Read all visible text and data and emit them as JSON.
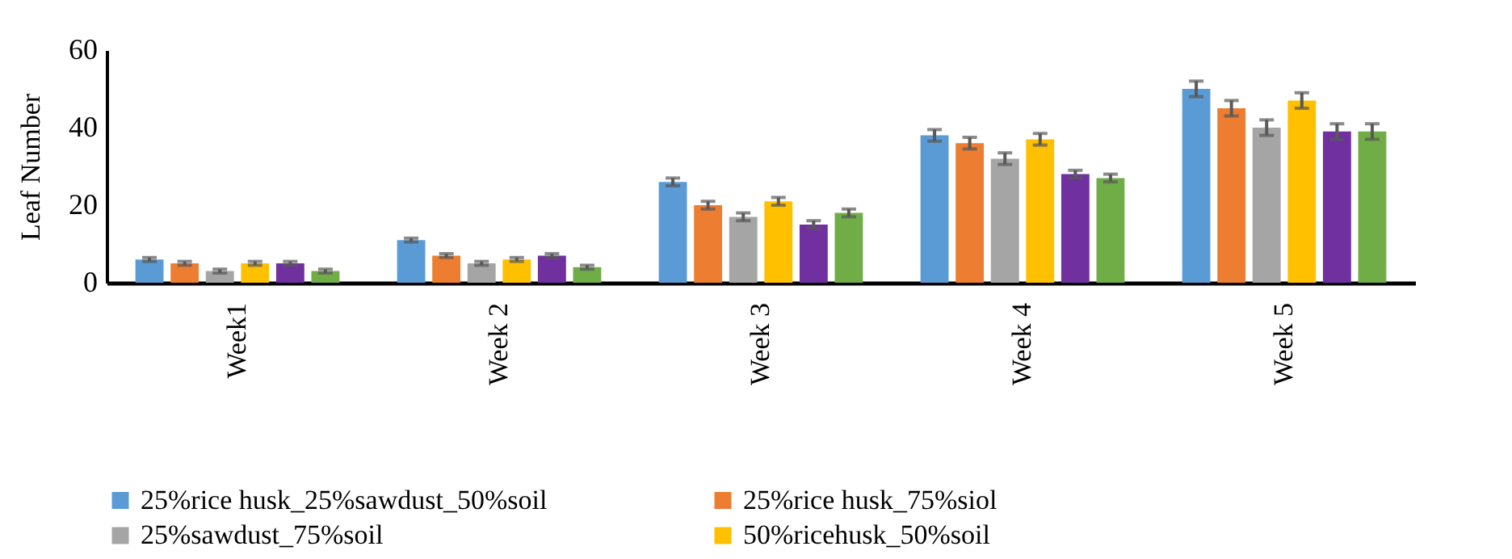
{
  "chart_data": {
    "type": "bar",
    "ylabel": "Leaf Number",
    "categories": [
      "Week1",
      "Week 2",
      "Week 3",
      "Week 4",
      "Week 5"
    ],
    "series": [
      {
        "name": "25%rice husk_25%sawdust_50%soil",
        "color": "#5b9bd5",
        "values": [
          6,
          11,
          26,
          38,
          50
        ],
        "errors": [
          0.5,
          0.5,
          1,
          1.5,
          2
        ]
      },
      {
        "name": "25%rice husk_75%siol",
        "color": "#ed7d31",
        "values": [
          5,
          7,
          20,
          36,
          45
        ],
        "errors": [
          0.5,
          0.5,
          1,
          1.5,
          2
        ]
      },
      {
        "name": "25%sawdust_75%soil",
        "color": "#a5a5a5",
        "values": [
          3,
          5,
          17,
          32,
          40
        ],
        "errors": [
          0.5,
          0.5,
          1,
          1.5,
          2
        ]
      },
      {
        "name": "50%ricehusk_50%soil",
        "color": "#ffc000",
        "values": [
          5,
          6,
          21,
          37,
          47
        ],
        "errors": [
          0.5,
          0.5,
          1,
          1.5,
          2
        ]
      },
      {
        "color": "#7030a0",
        "values": [
          5,
          7,
          15,
          28,
          39
        ],
        "errors": [
          0.5,
          0.5,
          1,
          1,
          2
        ]
      },
      {
        "color": "#70ad47",
        "values": [
          3,
          4,
          18,
          27,
          39
        ],
        "errors": [
          0.5,
          0.5,
          1,
          1,
          2
        ]
      }
    ],
    "ylim": [
      0,
      60
    ],
    "yticks": [
      0,
      20,
      40,
      60
    ],
    "grid": false,
    "legend": "bottom"
  }
}
